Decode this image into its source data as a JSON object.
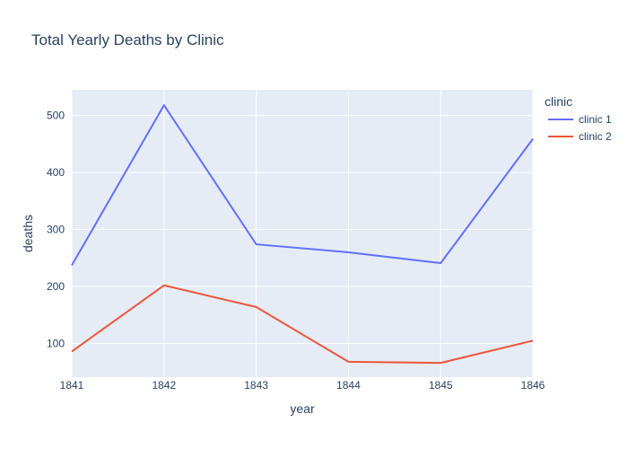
{
  "chart_data": {
    "type": "line",
    "title": "Total Yearly Deaths by Clinic",
    "xlabel": "year",
    "ylabel": "deaths",
    "x": [
      1841,
      1842,
      1843,
      1844,
      1845,
      1846
    ],
    "xlim": [
      1841,
      1846
    ],
    "ylim": [
      41,
      545
    ],
    "y_ticks": [
      100,
      200,
      300,
      400,
      500
    ],
    "grid": true,
    "legend_title": "clinic",
    "legend_position": "top-right",
    "series": [
      {
        "name": "clinic 1",
        "color": "#636efa",
        "values": [
          237,
          518,
          274,
          260,
          241,
          459
        ]
      },
      {
        "name": "clinic 2",
        "color": "#ef553b",
        "values": [
          86,
          202,
          164,
          68,
          66,
          105
        ]
      }
    ]
  }
}
